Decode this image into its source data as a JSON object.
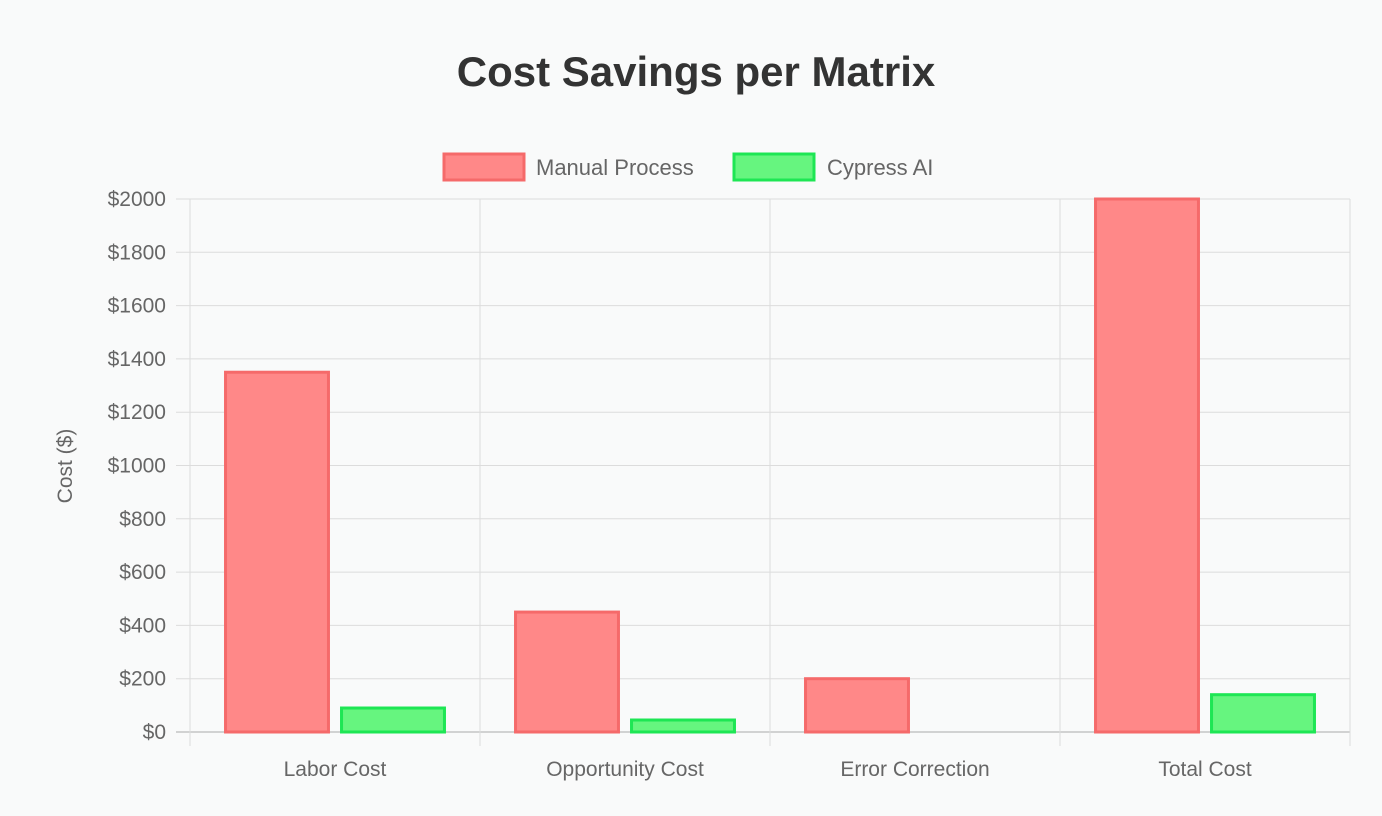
{
  "chart_data": {
    "type": "bar",
    "title": "Cost Savings per Matrix",
    "xlabel": "",
    "ylabel": "Cost ($)",
    "categories": [
      "Labor Cost",
      "Opportunity Cost",
      "Error Correction",
      "Total Cost"
    ],
    "series": [
      {
        "name": "Manual Process",
        "values": [
          1350,
          450,
          200,
          2000
        ],
        "fill": "#ff8888",
        "stroke": "#f56a6a"
      },
      {
        "name": "Cypress AI",
        "values": [
          90,
          45,
          0,
          140
        ],
        "fill": "#66f57f",
        "stroke": "#1ee654"
      }
    ],
    "ylim": [
      0,
      2000
    ],
    "yticks": [
      "$0",
      "$200",
      "$400",
      "$600",
      "$800",
      "$1000",
      "$1200",
      "$1400",
      "$1600",
      "$1800",
      "$2000"
    ],
    "ytick_values": [
      0,
      200,
      400,
      600,
      800,
      1000,
      1200,
      1400,
      1600,
      1800,
      2000
    ],
    "grid": true,
    "legend_position": "top"
  }
}
